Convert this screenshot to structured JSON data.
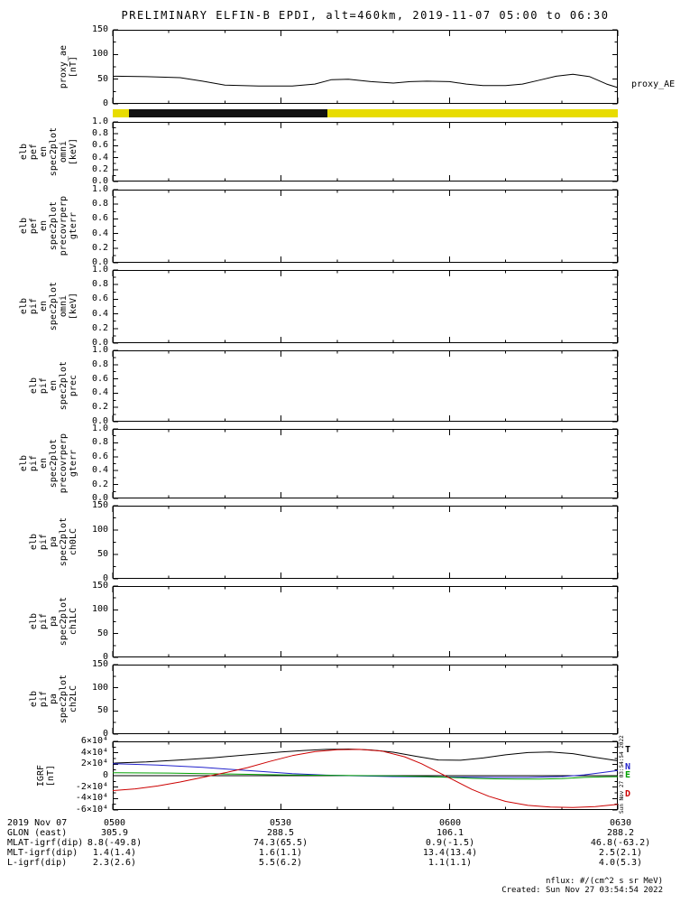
{
  "title": "PRELIMINARY ELFIN-B EPDI, alt=460km, 2019-11-07 05:00 to 06:30",
  "side_timestamp": "Sun Nov 27 03:54:54 2022",
  "footer": {
    "nflux_note": "nflux: #/(cm^2 s sr MeV)",
    "created": "Created: Sun Nov 27 03:54:54 2022"
  },
  "bottom_table": {
    "rows": [
      {
        "label": "2019 Nov 07",
        "values": [
          "0500",
          "0530",
          "0600",
          "0630"
        ]
      },
      {
        "label": "GLON (east)",
        "values": [
          "305.9",
          "288.5",
          "106.1",
          "288.2"
        ]
      },
      {
        "label": "MLAT-igrf(dip)",
        "values": [
          "8.8(-49.8)",
          "74.3(65.5)",
          "0.9(-1.5)",
          "46.8(-63.2)"
        ]
      },
      {
        "label": "MLT-igrf(dip)",
        "values": [
          "1.4(1.4)",
          "1.6(1.1)",
          "13.4(13.4)",
          "2.5(2.1)"
        ]
      },
      {
        "label": "L-igrf(dip)",
        "values": [
          "2.3(2.6)",
          "5.5(6.2)",
          "1.1(1.1)",
          "4.0(5.3)"
        ]
      }
    ]
  },
  "chart_data": [
    {
      "id": "proxy_ae",
      "type": "line",
      "ylabel_words": [
        "proxy_ae",
        "[nT]"
      ],
      "right_label": "proxy_AE",
      "ylim": [
        0,
        150
      ],
      "yminor": 25,
      "yticks": [
        {
          "v": 0,
          "label": "0"
        },
        {
          "v": 50,
          "label": "50"
        },
        {
          "v": 100,
          "label": "100"
        },
        {
          "v": 150,
          "label": "150"
        }
      ],
      "xlim": [
        0,
        90
      ],
      "xticks": [
        0,
        30,
        60,
        90
      ],
      "xminor": 10,
      "xtick_labels": [
        "0500",
        "0530",
        "0600",
        "0630"
      ],
      "series": [
        {
          "name": "proxy_AE",
          "color": "#000000",
          "x": [
            0,
            6,
            12,
            16,
            20,
            26,
            32,
            36,
            39,
            42,
            46,
            50,
            53,
            56,
            60,
            63,
            66,
            70,
            73,
            76,
            79,
            82,
            85,
            88,
            90
          ],
          "y": [
            56,
            55,
            53,
            46,
            38,
            36,
            36,
            40,
            49,
            50,
            45,
            42,
            45,
            46,
            45,
            40,
            37,
            37,
            40,
            48,
            56,
            60,
            55,
            40,
            33
          ]
        }
      ]
    },
    {
      "id": "science_zone_bar",
      "type": "bar-strip",
      "segments": [
        {
          "color": "#e8dc00",
          "from": 0.0,
          "to": 0.032
        },
        {
          "color": "#111111",
          "from": 0.032,
          "to": 0.425
        },
        {
          "color": "#e8dc00",
          "from": 0.425,
          "to": 1.0
        }
      ]
    },
    {
      "id": "elb_pef_en_spec2plot_omni",
      "type": "empty",
      "ylabel_words": [
        "elb",
        "pef",
        "en",
        "spec2plot",
        "omni",
        "[keV]"
      ],
      "ylim": [
        0,
        1
      ],
      "yminor": 0.1,
      "yticks": [
        {
          "v": 0,
          "label": "0.0"
        },
        {
          "v": 0.2,
          "label": "0.2"
        },
        {
          "v": 0.4,
          "label": "0.4"
        },
        {
          "v": 0.6,
          "label": "0.6"
        },
        {
          "v": 0.8,
          "label": "0.8"
        },
        {
          "v": 1,
          "label": "1.0"
        }
      ]
    },
    {
      "id": "elb_pef_en_spec2plot_precovrperp_gterr",
      "type": "empty",
      "ylabel_words": [
        "elb",
        "pef",
        "en",
        "spec2plot",
        "precovrperp",
        "gterr"
      ],
      "ylim": [
        0,
        1
      ],
      "yminor": 0.1,
      "yticks": [
        {
          "v": 0,
          "label": "0.0"
        },
        {
          "v": 0.2,
          "label": "0.2"
        },
        {
          "v": 0.4,
          "label": "0.4"
        },
        {
          "v": 0.6,
          "label": "0.6"
        },
        {
          "v": 0.8,
          "label": "0.8"
        },
        {
          "v": 1,
          "label": "1.0"
        }
      ]
    },
    {
      "id": "elb_pif_en_spec2plot_omni",
      "type": "empty",
      "ylabel_words": [
        "elb",
        "pif",
        "en",
        "spec2plot",
        "omni",
        "[keV]"
      ],
      "ylim": [
        0,
        1
      ],
      "yminor": 0.1,
      "yticks": [
        {
          "v": 0,
          "label": "0.0"
        },
        {
          "v": 0.2,
          "label": "0.2"
        },
        {
          "v": 0.4,
          "label": "0.4"
        },
        {
          "v": 0.6,
          "label": "0.6"
        },
        {
          "v": 0.8,
          "label": "0.8"
        },
        {
          "v": 1,
          "label": "1.0"
        }
      ]
    },
    {
      "id": "elb_pif_en_spec2plot_prec",
      "type": "empty",
      "ylabel_words": [
        "elb",
        "pif",
        "en",
        "spec2plot",
        "prec"
      ],
      "ylim": [
        0,
        1
      ],
      "yminor": 0.1,
      "yticks": [
        {
          "v": 0,
          "label": "0.0"
        },
        {
          "v": 0.2,
          "label": "0.2"
        },
        {
          "v": 0.4,
          "label": "0.4"
        },
        {
          "v": 0.6,
          "label": "0.6"
        },
        {
          "v": 0.8,
          "label": "0.8"
        },
        {
          "v": 1,
          "label": "1.0"
        }
      ]
    },
    {
      "id": "elb_pif_en_spec2plot_precovrperp_gterr",
      "type": "empty",
      "ylabel_words": [
        "elb",
        "pif",
        "en",
        "spec2plot",
        "precovrperp",
        "gterr"
      ],
      "ylim": [
        0,
        1
      ],
      "yminor": 0.1,
      "yticks": [
        {
          "v": 0,
          "label": "0.0"
        },
        {
          "v": 0.2,
          "label": "0.2"
        },
        {
          "v": 0.4,
          "label": "0.4"
        },
        {
          "v": 0.6,
          "label": "0.6"
        },
        {
          "v": 0.8,
          "label": "0.8"
        },
        {
          "v": 1,
          "label": "1.0"
        }
      ]
    },
    {
      "id": "elb_pif_pa_spec2plot_ch0LC",
      "type": "empty",
      "ylabel_words": [
        "elb",
        "pif",
        "pa",
        "spec2plot",
        "ch0LC"
      ],
      "ylim": [
        0,
        150
      ],
      "yminor": 25,
      "yticks": [
        {
          "v": 0,
          "label": "0"
        },
        {
          "v": 50,
          "label": "50"
        },
        {
          "v": 100,
          "label": "100"
        },
        {
          "v": 150,
          "label": "150"
        }
      ]
    },
    {
      "id": "elb_pif_pa_spec2plot_ch1LC",
      "type": "empty",
      "ylabel_words": [
        "elb",
        "pif",
        "pa",
        "spec2plot",
        "ch1LC"
      ],
      "ylim": [
        0,
        150
      ],
      "yminor": 25,
      "yticks": [
        {
          "v": 0,
          "label": "0"
        },
        {
          "v": 50,
          "label": "50"
        },
        {
          "v": 100,
          "label": "100"
        },
        {
          "v": 150,
          "label": "150"
        }
      ]
    },
    {
      "id": "elb_pif_pa_spec2plot_ch2LC",
      "type": "empty",
      "ylabel_words": [
        "elb",
        "pif",
        "pa",
        "spec2plot",
        "ch2LC"
      ],
      "ylim": [
        0,
        150
      ],
      "yminor": 25,
      "yticks": [
        {
          "v": 0,
          "label": "0"
        },
        {
          "v": 50,
          "label": "50"
        },
        {
          "v": 100,
          "label": "100"
        },
        {
          "v": 150,
          "label": "150"
        }
      ]
    },
    {
      "id": "igrf",
      "type": "line",
      "ylabel_words": [
        "IGRF",
        "[nT]"
      ],
      "ylim": [
        -60000,
        60000
      ],
      "yminor": 10000,
      "zero_line": true,
      "yticks": [
        {
          "v": -60000,
          "label": "-6×10⁴"
        },
        {
          "v": -40000,
          "label": "-4×10⁴"
        },
        {
          "v": -20000,
          "label": "-2×10⁴"
        },
        {
          "v": 0,
          "label": "0"
        },
        {
          "v": 20000,
          "label": "2×10⁴"
        },
        {
          "v": 40000,
          "label": "4×10⁴"
        },
        {
          "v": 60000,
          "label": "6×10⁴"
        }
      ],
      "xlim": [
        0,
        90
      ],
      "xticks": [
        0,
        30,
        60,
        90
      ],
      "xminor": 10,
      "series": [
        {
          "name": "T",
          "color": "#000000",
          "x": [
            0,
            6,
            12,
            18,
            24,
            30,
            34,
            38,
            42,
            46,
            50,
            54,
            58,
            62,
            66,
            70,
            74,
            78,
            82,
            86,
            90
          ],
          "y": [
            22000,
            24000,
            27500,
            31500,
            36500,
            41500,
            44000,
            46000,
            46500,
            45000,
            41000,
            34000,
            27500,
            27000,
            31000,
            36500,
            40500,
            41500,
            38500,
            32000,
            26000
          ]
        },
        {
          "name": "N",
          "color": "#2222cc",
          "x": [
            0,
            8,
            16,
            24,
            32,
            38,
            44,
            50,
            56,
            62,
            68,
            74,
            80,
            84,
            87,
            90
          ],
          "y": [
            21000,
            18500,
            14500,
            9000,
            3500,
            1000,
            -500,
            -1500,
            -2000,
            -2500,
            -3000,
            -3000,
            -1500,
            1500,
            5000,
            9000
          ]
        },
        {
          "name": "E",
          "color": "#00a000",
          "x": [
            0,
            10,
            20,
            30,
            40,
            50,
            56,
            60,
            64,
            68,
            72,
            76,
            80,
            84,
            88,
            90
          ],
          "y": [
            5000,
            4500,
            3000,
            1500,
            500,
            -500,
            -1500,
            -3000,
            -4500,
            -5500,
            -6000,
            -6000,
            -5000,
            -3000,
            -2000,
            -1800
          ]
        },
        {
          "name": "D",
          "color": "#cc0000",
          "x": [
            0,
            4,
            8,
            12,
            16,
            20,
            24,
            28,
            32,
            36,
            40,
            44,
            48,
            52,
            55,
            58,
            61,
            64,
            67,
            70,
            74,
            78,
            82,
            86,
            90
          ],
          "y": [
            -26000,
            -23000,
            -18000,
            -11000,
            -3000,
            5000,
            14000,
            25000,
            35000,
            42000,
            45500,
            46000,
            43000,
            33000,
            21000,
            6000,
            -9000,
            -24000,
            -36000,
            -45000,
            -52000,
            -55000,
            -55500,
            -54000,
            -50000
          ]
        }
      ],
      "legend": [
        {
          "label": "T",
          "color": "#000000",
          "v": 45000
        },
        {
          "label": "N",
          "color": "#2222cc",
          "v": 14000
        },
        {
          "label": "E",
          "color": "#00a000",
          "v": 500
        },
        {
          "label": "D",
          "color": "#cc0000",
          "v": -33000
        }
      ]
    }
  ]
}
